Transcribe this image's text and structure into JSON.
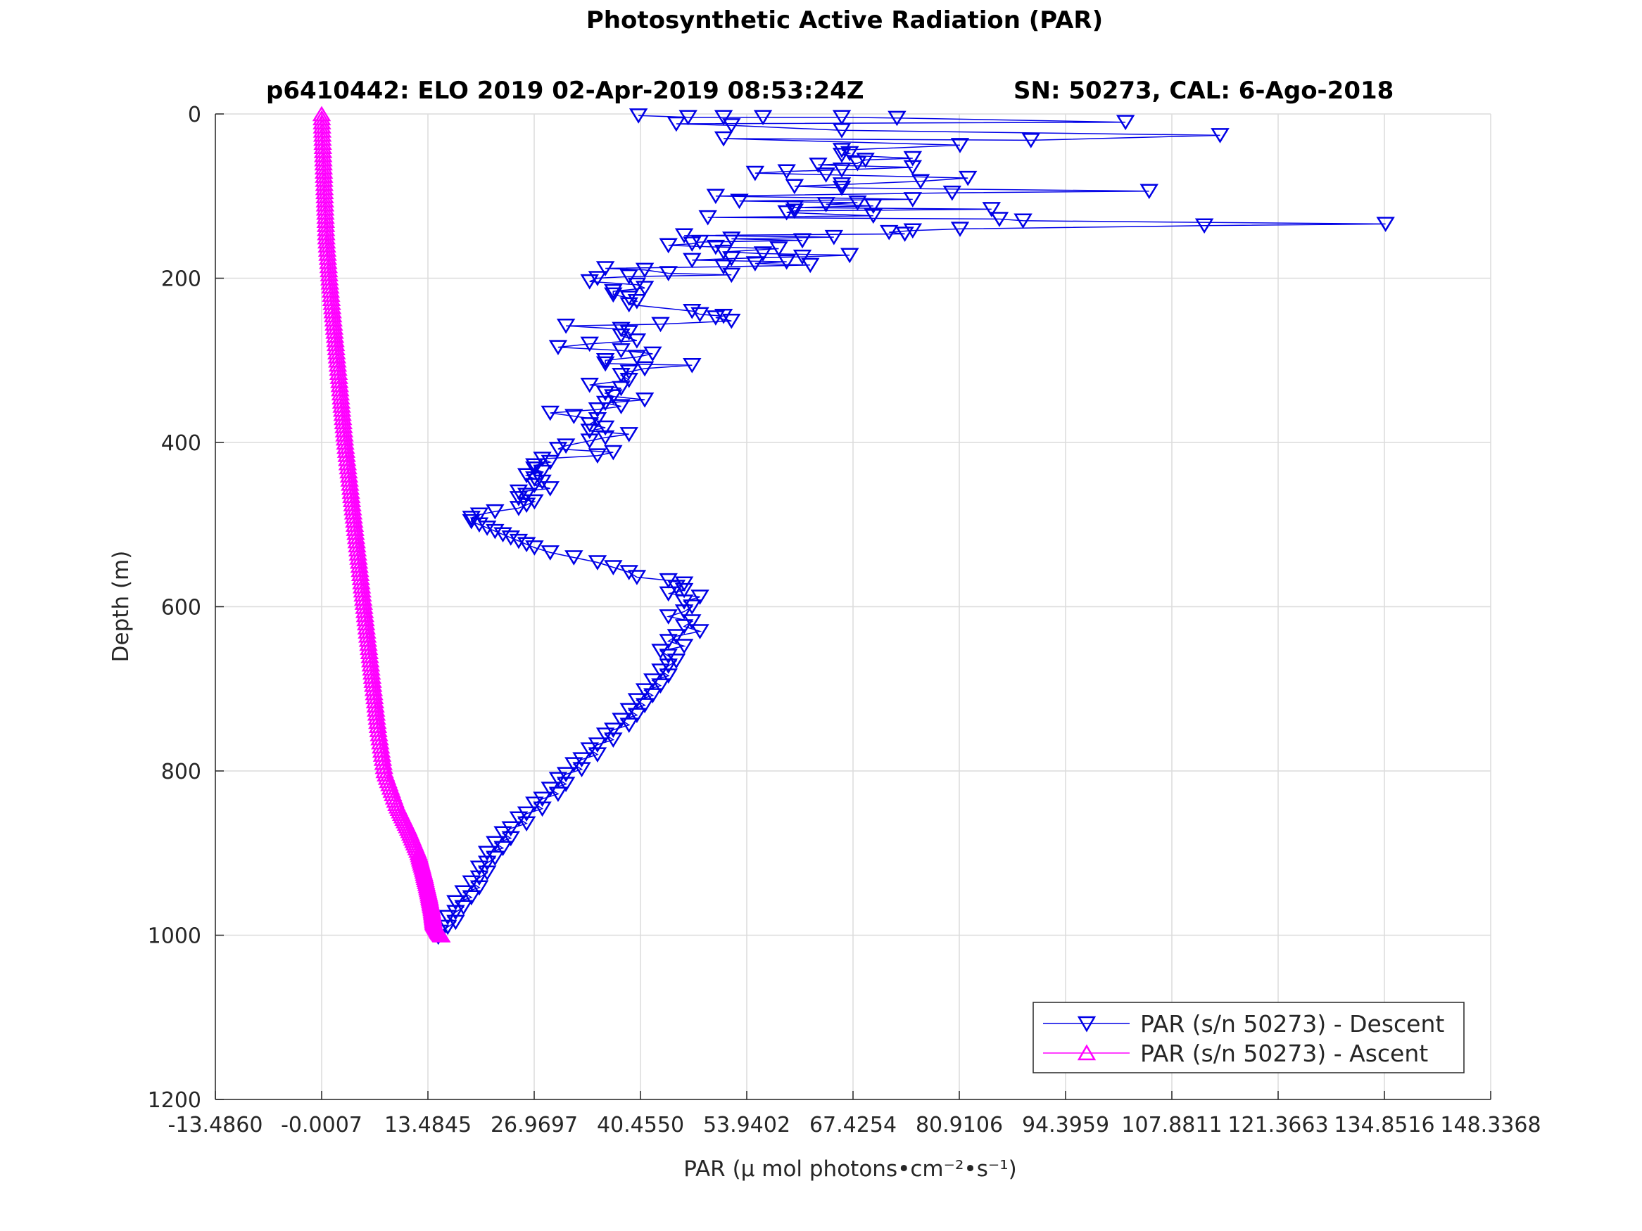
{
  "chart_data": {
    "type": "line",
    "title": "Photosynthetic Active Radiation (PAR)",
    "subtitle_left": "p6410442: ELO 2019 02-Apr-2019 08:53:24Z",
    "subtitle_right": "SN: 50273, CAL: 6-Ago-2018",
    "xlabel": "PAR (μ mol photons•cm⁻²•s⁻¹)",
    "ylabel": "Depth (m)",
    "xlim": [
      -13.486,
      148.3368
    ],
    "ylim": [
      0,
      1200
    ],
    "y_reversed": true,
    "grid": true,
    "legend_position": "bottom-right",
    "x_ticks": [
      "-13.4860",
      "-0.0007",
      "13.4845",
      "26.9697",
      "40.4550",
      "53.9402",
      "67.4254",
      "80.9106",
      "94.3959",
      "107.8811",
      "121.3663",
      "134.8516",
      "148.3368"
    ],
    "y_ticks": [
      "0",
      "200",
      "400",
      "600",
      "800",
      "1000",
      "1200"
    ],
    "series": [
      {
        "name": "PAR (s/n 50273) - Descent",
        "color": "#0000e6",
        "marker": "triangle-down",
        "points": [
          [
            40.2,
            2
          ],
          [
            46.5,
            4
          ],
          [
            51,
            4
          ],
          [
            56,
            4
          ],
          [
            66,
            4
          ],
          [
            73,
            5
          ],
          [
            102,
            10
          ],
          [
            45,
            12
          ],
          [
            52,
            14
          ],
          [
            66,
            20
          ],
          [
            114,
            26
          ],
          [
            90,
            32
          ],
          [
            51,
            30
          ],
          [
            81,
            38
          ],
          [
            66,
            44
          ],
          [
            67,
            48
          ],
          [
            66,
            50
          ],
          [
            75,
            54
          ],
          [
            69,
            56
          ],
          [
            68,
            60
          ],
          [
            63,
            62
          ],
          [
            75,
            65
          ],
          [
            66,
            68
          ],
          [
            59,
            70
          ],
          [
            55,
            72
          ],
          [
            64,
            74
          ],
          [
            82,
            78
          ],
          [
            76,
            82
          ],
          [
            66,
            86
          ],
          [
            60,
            88
          ],
          [
            66,
            90
          ],
          [
            105,
            94
          ],
          [
            80,
            96
          ],
          [
            50,
            100
          ],
          [
            75,
            104
          ],
          [
            53,
            106
          ],
          [
            68,
            108
          ],
          [
            64,
            110
          ],
          [
            70,
            112
          ],
          [
            60,
            114
          ],
          [
            85,
            116
          ],
          [
            60,
            118
          ],
          [
            59,
            120
          ],
          [
            70,
            124
          ],
          [
            49,
            126
          ],
          [
            86,
            128
          ],
          [
            89,
            130
          ],
          [
            135,
            134
          ],
          [
            112,
            136
          ],
          [
            81,
            140
          ],
          [
            75,
            142
          ],
          [
            72,
            144
          ],
          [
            74,
            146
          ],
          [
            46,
            148
          ],
          [
            65,
            150
          ],
          [
            52,
            152
          ],
          [
            61,
            154
          ],
          [
            48,
            156
          ],
          [
            47,
            158
          ],
          [
            44,
            160
          ],
          [
            50,
            162
          ],
          [
            58,
            164
          ],
          [
            51,
            168
          ],
          [
            56,
            170
          ],
          [
            67,
            172
          ],
          [
            61,
            174
          ],
          [
            52,
            176
          ],
          [
            47,
            178
          ],
          [
            59,
            180
          ],
          [
            55,
            182
          ],
          [
            62,
            184
          ],
          [
            51,
            186
          ],
          [
            36,
            188
          ],
          [
            41,
            190
          ],
          [
            44,
            194
          ],
          [
            52,
            196
          ],
          [
            39,
            198
          ],
          [
            35,
            200
          ],
          [
            34,
            204
          ],
          [
            40,
            208
          ],
          [
            41,
            212
          ],
          [
            37,
            216
          ],
          [
            37,
            220
          ],
          [
            39,
            224
          ],
          [
            40,
            228
          ],
          [
            39,
            232
          ],
          [
            47,
            240
          ],
          [
            48,
            244
          ],
          [
            51,
            246
          ],
          [
            50,
            248
          ],
          [
            52,
            252
          ],
          [
            43,
            256
          ],
          [
            31,
            258
          ],
          [
            38,
            262
          ],
          [
            39,
            266
          ],
          [
            38,
            270
          ],
          [
            40,
            276
          ],
          [
            34,
            280
          ],
          [
            30,
            284
          ],
          [
            38,
            288
          ],
          [
            42,
            292
          ],
          [
            40,
            296
          ],
          [
            36,
            300
          ],
          [
            36,
            304
          ],
          [
            47,
            306
          ],
          [
            41,
            310
          ],
          [
            39,
            314
          ],
          [
            38,
            318
          ],
          [
            39,
            324
          ],
          [
            34,
            330
          ],
          [
            38,
            334
          ],
          [
            36,
            340
          ],
          [
            37,
            344
          ],
          [
            41,
            348
          ],
          [
            36,
            352
          ],
          [
            38,
            356
          ],
          [
            35,
            360
          ],
          [
            29,
            364
          ],
          [
            32,
            368
          ],
          [
            35,
            372
          ],
          [
            34,
            378
          ],
          [
            36,
            382
          ],
          [
            34,
            386
          ],
          [
            39,
            390
          ],
          [
            36,
            394
          ],
          [
            34,
            398
          ],
          [
            31,
            404
          ],
          [
            30,
            408
          ],
          [
            37,
            412
          ],
          [
            35,
            416
          ],
          [
            28,
            420
          ],
          [
            29,
            424
          ],
          [
            27,
            428
          ],
          [
            27,
            432
          ],
          [
            28,
            436
          ],
          [
            26,
            440
          ],
          [
            27,
            444
          ],
          [
            28,
            448
          ],
          [
            27,
            452
          ],
          [
            29,
            456
          ],
          [
            25,
            460
          ],
          [
            26,
            464
          ],
          [
            25,
            468
          ],
          [
            27,
            472
          ],
          [
            26,
            476
          ],
          [
            25,
            480
          ],
          [
            22,
            484
          ],
          [
            20,
            488
          ],
          [
            19,
            492
          ],
          [
            19,
            496
          ],
          [
            20,
            500
          ],
          [
            21,
            504
          ],
          [
            22,
            508
          ],
          [
            23,
            512
          ],
          [
            24,
            516
          ],
          [
            25,
            520
          ],
          [
            26,
            524
          ],
          [
            27,
            528
          ],
          [
            29,
            534
          ],
          [
            32,
            540
          ],
          [
            35,
            546
          ],
          [
            37,
            552
          ],
          [
            39,
            558
          ],
          [
            40,
            564
          ],
          [
            44,
            568
          ],
          [
            46,
            572
          ],
          [
            45,
            576
          ],
          [
            46,
            580
          ],
          [
            44,
            584
          ],
          [
            48,
            588
          ],
          [
            46,
            594
          ],
          [
            47,
            600
          ],
          [
            46,
            606
          ],
          [
            44,
            612
          ],
          [
            47,
            618
          ],
          [
            46,
            624
          ],
          [
            48,
            630
          ],
          [
            45,
            636
          ],
          [
            44,
            642
          ],
          [
            46,
            648
          ],
          [
            43,
            654
          ],
          [
            44,
            660
          ],
          [
            45,
            666
          ],
          [
            44,
            672
          ],
          [
            43,
            678
          ],
          [
            44,
            684
          ],
          [
            42,
            690
          ],
          [
            43,
            696
          ],
          [
            41,
            702
          ],
          [
            42,
            708
          ],
          [
            40,
            714
          ],
          [
            41,
            720
          ],
          [
            39,
            726
          ],
          [
            40,
            732
          ],
          [
            38,
            738
          ],
          [
            39,
            744
          ],
          [
            37,
            750
          ],
          [
            36,
            756
          ],
          [
            37,
            762
          ],
          [
            35,
            768
          ],
          [
            34,
            774
          ],
          [
            35,
            780
          ],
          [
            33,
            786
          ],
          [
            32,
            792
          ],
          [
            33,
            798
          ],
          [
            31,
            804
          ],
          [
            30,
            810
          ],
          [
            31,
            816
          ],
          [
            29,
            822
          ],
          [
            30,
            828
          ],
          [
            28,
            834
          ],
          [
            27,
            840
          ],
          [
            28,
            846
          ],
          [
            26,
            852
          ],
          [
            25,
            858
          ],
          [
            26,
            864
          ],
          [
            24,
            870
          ],
          [
            23,
            876
          ],
          [
            24,
            882
          ],
          [
            22,
            888
          ],
          [
            23,
            894
          ],
          [
            21,
            900
          ],
          [
            22,
            906
          ],
          [
            21,
            912
          ],
          [
            20,
            918
          ],
          [
            21,
            924
          ],
          [
            20,
            930
          ],
          [
            19,
            936
          ],
          [
            20,
            942
          ],
          [
            18,
            948
          ],
          [
            19,
            954
          ],
          [
            17,
            960
          ],
          [
            18,
            966
          ],
          [
            17,
            972
          ],
          [
            16,
            978
          ],
          [
            17,
            984
          ],
          [
            16,
            990
          ],
          [
            15,
            996
          ],
          [
            14.8,
            1002
          ]
        ]
      },
      {
        "name": "PAR (s/n 50273) - Ascent",
        "color": "#ff00ff",
        "marker": "triangle-up",
        "points": [
          [
            0,
            0
          ],
          [
            0.2,
            50
          ],
          [
            0.4,
            100
          ],
          [
            0.6,
            150
          ],
          [
            1.0,
            200
          ],
          [
            1.5,
            250
          ],
          [
            2.0,
            300
          ],
          [
            2.5,
            350
          ],
          [
            3.0,
            400
          ],
          [
            3.6,
            450
          ],
          [
            4.2,
            500
          ],
          [
            4.8,
            550
          ],
          [
            5.4,
            600
          ],
          [
            6.0,
            650
          ],
          [
            6.6,
            700
          ],
          [
            7.2,
            750
          ],
          [
            8.0,
            800
          ],
          [
            9.5,
            840
          ],
          [
            11.0,
            870
          ],
          [
            12.3,
            900
          ],
          [
            13.0,
            925
          ],
          [
            13.6,
            950
          ],
          [
            14.0,
            970
          ],
          [
            14.2,
            985
          ],
          [
            14.8,
            995
          ],
          [
            15.2,
            1000
          ]
        ]
      }
    ]
  }
}
